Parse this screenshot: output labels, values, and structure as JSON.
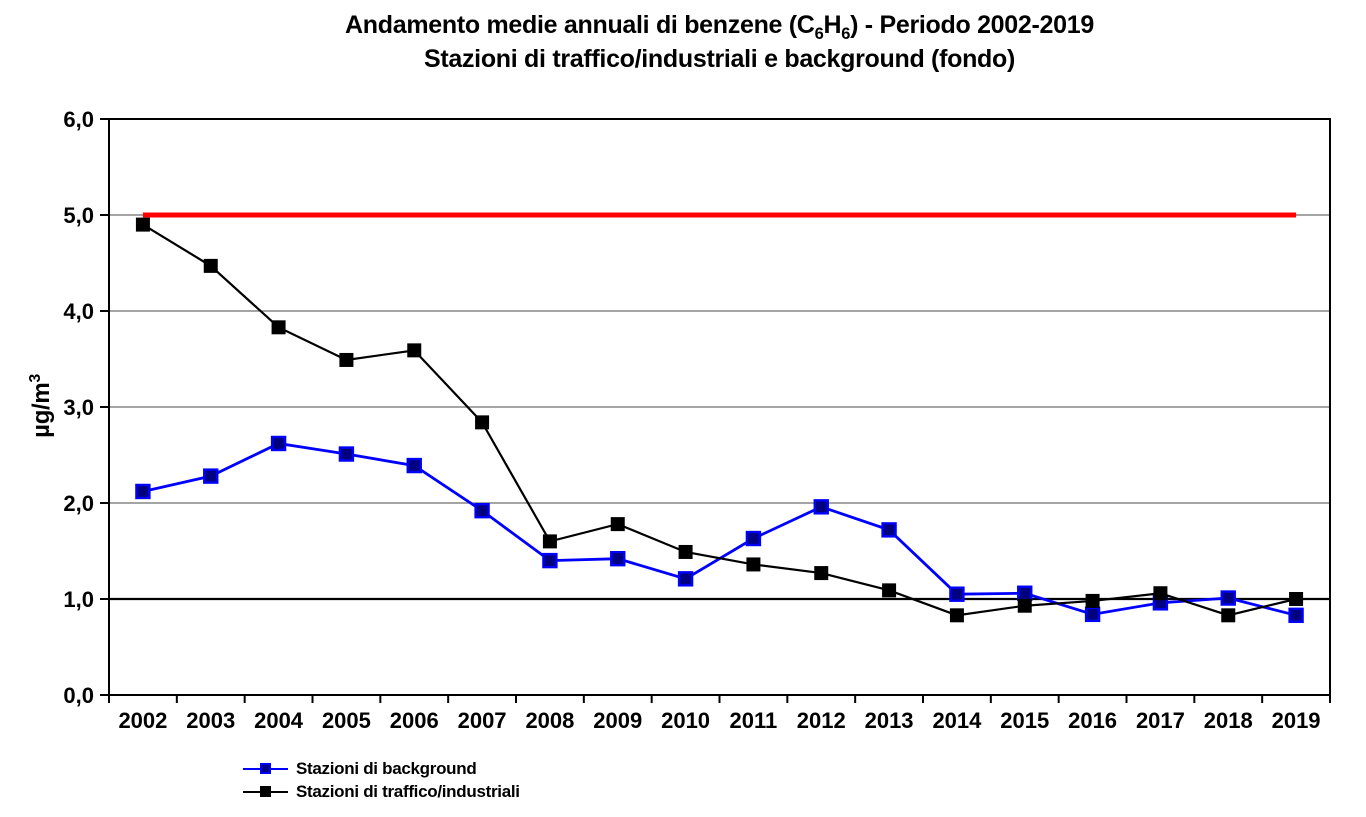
{
  "title": {
    "part1": "Andamento medie annuali di benzene (C",
    "sub1": "6",
    "part2": "H",
    "sub2": "6",
    "part3": ") - Periodo 2002-2019",
    "line2": "Stazioni di traffico/industriali e background (fondo)"
  },
  "y_axis": {
    "unit_text": "µg/m",
    "unit_sup": "3"
  },
  "chart_data": {
    "type": "line",
    "title": "Andamento medie annuali di benzene (C6H6) - Periodo 2002-2019",
    "subtitle": "Stazioni di traffico/industriali e background (fondo)",
    "ylabel": "µg/m³",
    "xlabel": "",
    "categories": [
      "2002",
      "2003",
      "2004",
      "2005",
      "2006",
      "2007",
      "2008",
      "2009",
      "2010",
      "2011",
      "2012",
      "2013",
      "2014",
      "2015",
      "2016",
      "2017",
      "2018",
      "2019"
    ],
    "series": [
      {
        "name": "Stazioni di background",
        "color": "#0000ff",
        "marker_fill": "#000080",
        "marker": "square",
        "values": [
          2.12,
          2.28,
          2.62,
          2.51,
          2.39,
          1.92,
          1.4,
          1.42,
          1.21,
          1.63,
          1.96,
          1.72,
          1.05,
          1.06,
          0.84,
          0.96,
          1.01,
          0.83
        ]
      },
      {
        "name": "Stazioni di traffico/industriali",
        "color": "#000000",
        "marker_fill": "#000000",
        "marker": "square",
        "values": [
          4.9,
          4.47,
          3.83,
          3.49,
          3.59,
          2.84,
          1.6,
          1.78,
          1.49,
          1.36,
          1.27,
          1.09,
          0.83,
          0.93,
          0.98,
          1.06,
          0.83,
          1.0
        ]
      }
    ],
    "reference_line": {
      "value": 5.0,
      "color": "#ff0000",
      "span": "first-to-last-category"
    },
    "ylim": [
      0,
      6
    ],
    "y_ticks": [
      0,
      1,
      2,
      3,
      4,
      5,
      6
    ],
    "y_tick_labels": [
      "0,0",
      "1,0",
      "2,0",
      "3,0",
      "4,0",
      "5,0",
      "6,0"
    ],
    "grid": "horizontal",
    "gridline_color": "#6e6e6e",
    "emphasized_gridline": {
      "value": 1.0,
      "color": "#000000"
    },
    "axis_color": "#000000",
    "legend_position": "bottom-left"
  }
}
